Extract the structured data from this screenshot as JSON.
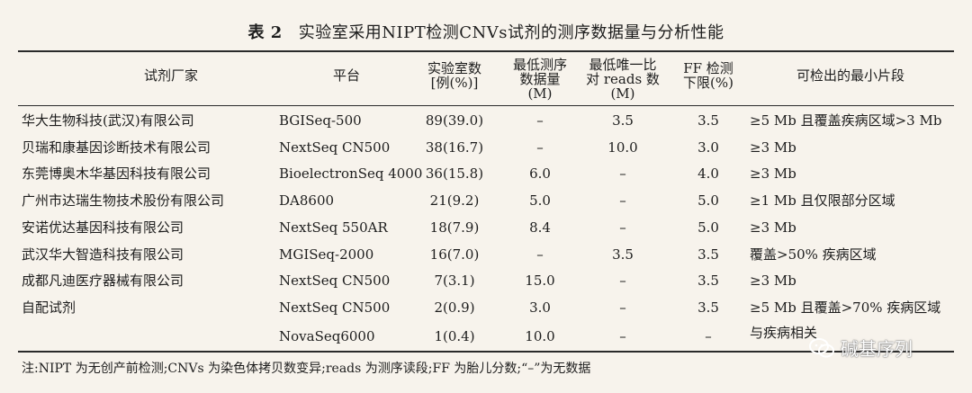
{
  "table": {
    "number": "表 2",
    "title": "实验室采用NIPT检测CNVs试剂的测序数据量与分析性能",
    "headers": {
      "vendor": "试剂厂家",
      "platform": "平台",
      "count": [
        "实验室数",
        "[例(%)]"
      ],
      "min_data": [
        "最低测序",
        "数据量",
        "(M)"
      ],
      "min_reads": [
        "最低唯一比",
        "对 reads 数",
        "(M)"
      ],
      "ff": [
        "FF 检测",
        "下限(%)"
      ],
      "min_fragment": "可检出的最小片段"
    },
    "rows": [
      {
        "vendor": "华大生物科技(武汉)有限公司",
        "platform": "BGISeq-500",
        "count": "89(39.0)",
        "min_data": "–",
        "min_reads": "3.5",
        "ff": "3.5",
        "min_fragment": "≥5 Mb 且覆盖疾病区域>3 Mb"
      },
      {
        "vendor": "贝瑞和康基因诊断技术有限公司",
        "platform": "NextSeq CN500",
        "count": "38(16.7)",
        "min_data": "–",
        "min_reads": "10.0",
        "ff": "3.0",
        "min_fragment": "≥3 Mb"
      },
      {
        "vendor": "东莞博奥木华基因科技有限公司",
        "platform": "BioelectronSeq 4000",
        "count": "36(15.8)",
        "min_data": "6.0",
        "min_reads": "–",
        "ff": "4.0",
        "min_fragment": "≥3 Mb"
      },
      {
        "vendor": "广州市达瑞生物技术股份有限公司",
        "platform": "DA8600",
        "count": "21(9.2)",
        "min_data": "5.0",
        "min_reads": "–",
        "ff": "5.0",
        "min_fragment": "≥1 Mb 且仅限部分区域"
      },
      {
        "vendor": "安诺优达基因科技有限公司",
        "platform": "NextSeq 550AR",
        "count": "18(7.9)",
        "min_data": "8.4",
        "min_reads": "–",
        "ff": "5.0",
        "min_fragment": "≥3 Mb"
      },
      {
        "vendor": "武汉华大智造科技有限公司",
        "platform": "MGISeq-2000",
        "count": "16(7.0)",
        "min_data": "–",
        "min_reads": "3.5",
        "ff": "3.5",
        "min_fragment": "覆盖>50% 疾病区域"
      },
      {
        "vendor": "成都凡迪医疗器械有限公司",
        "platform": "NextSeq CN500",
        "count": "7(3.1)",
        "min_data": "15.0",
        "min_reads": "–",
        "ff": "3.5",
        "min_fragment": "≥3 Mb"
      },
      {
        "vendor": "自配试剂",
        "platform": "NextSeq CN500",
        "count": "2(0.9)",
        "min_data": "3.0",
        "min_reads": "–",
        "ff": "3.5",
        "min_fragment": "≥5 Mb 且覆盖>70% 疾病区域"
      },
      {
        "vendor": "",
        "platform": "",
        "count": "",
        "min_data": "",
        "min_reads": "",
        "ff": "",
        "min_fragment": "与疾病相关"
      },
      {
        "vendor": "",
        "platform": "NovaSeq6000",
        "count": "1(0.4)",
        "min_data": "10.0",
        "min_reads": "–",
        "ff": "–",
        "min_fragment": ""
      }
    ],
    "note": "注:NIPT 为无创产前检测;CNVs 为染色体拷贝数变异;reads 为测序读段;FF 为胎儿分数;“–”为无数据"
  },
  "watermark": {
    "text": "碱基序列",
    "icon": "wechat-icon"
  }
}
